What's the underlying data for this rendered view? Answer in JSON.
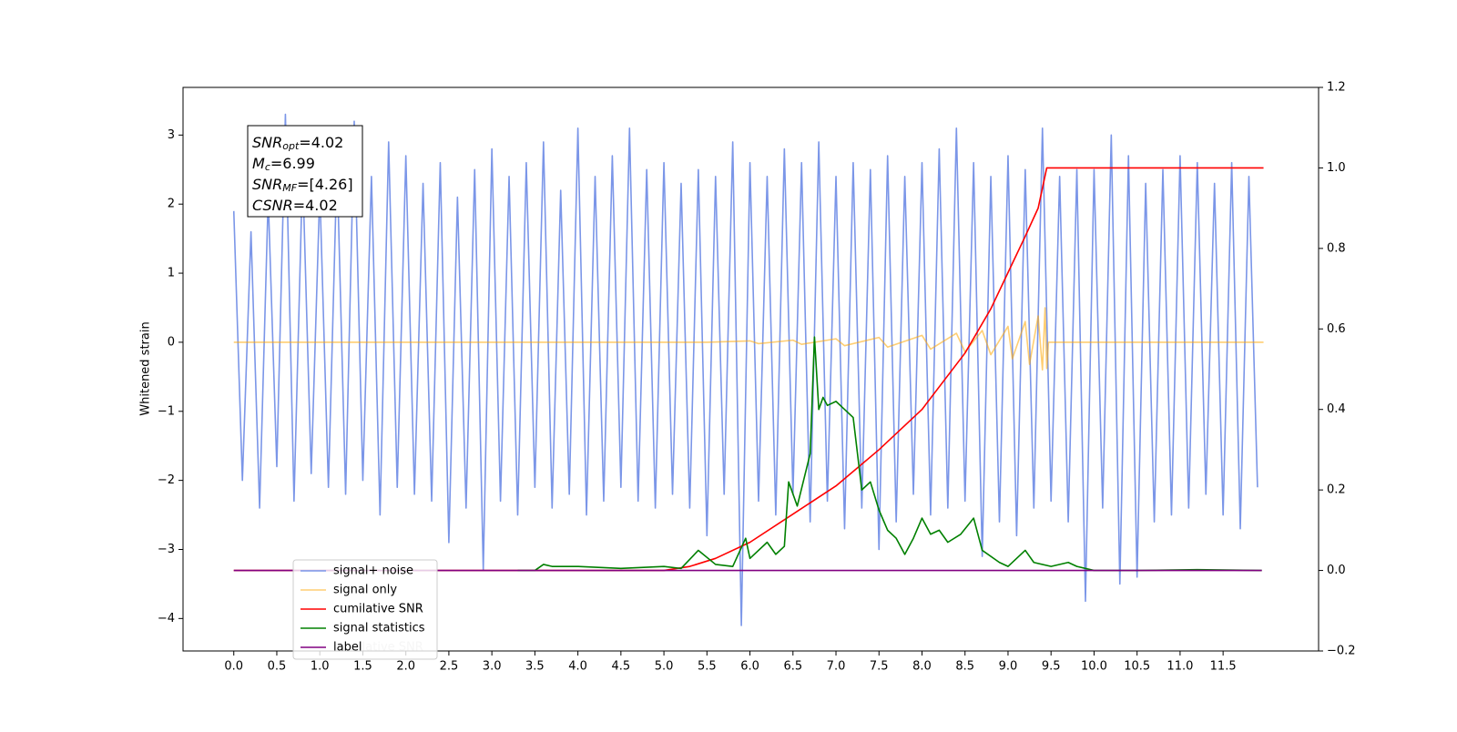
{
  "chart_data": {
    "type": "line",
    "ylabel": "Whitened strain",
    "xlim": [
      -0.59,
      12.61
    ],
    "ylim": [
      -4.47,
      3.69
    ],
    "y2lim": [
      -0.2,
      1.2
    ],
    "xticks": [
      {
        "value": 0,
        "label": "0.0"
      },
      0.5,
      {
        "value": 1,
        "label": "1.0"
      },
      1.5,
      {
        "value": 2,
        "label": "2.0"
      },
      2.5,
      {
        "value": 3,
        "label": "3.0"
      },
      3.5,
      {
        "value": 4,
        "label": "4.0"
      },
      4.5,
      {
        "value": 5,
        "label": "5.0"
      },
      5.5,
      {
        "value": 6,
        "label": "6.0"
      },
      6.5,
      {
        "value": 7,
        "label": "7.0"
      },
      7.5,
      {
        "value": 8,
        "label": "8.0"
      },
      8.5,
      {
        "value": 9,
        "label": "9.0"
      },
      9.5,
      {
        "value": 10,
        "label": "10.0"
      },
      10.5,
      {
        "value": 11,
        "label": "11.0"
      },
      11.5
    ],
    "yticks": [
      {
        "value": -4,
        "label": "−4"
      },
      {
        "value": -3,
        "label": "−3"
      },
      {
        "value": -2,
        "label": "−2"
      },
      {
        "value": -1,
        "label": "−1"
      },
      0,
      1,
      2,
      3
    ],
    "y2ticks": [
      {
        "value": -0.2,
        "label": "−0.2"
      },
      {
        "value": 0,
        "label": "0.0"
      },
      0.2,
      0.4,
      0.6,
      0.8,
      {
        "value": 1,
        "label": "1.0"
      },
      1.2
    ],
    "grid": false,
    "legend_loc": "lower left",
    "annotation": [
      {
        "name": "SNR",
        "sub": "opt",
        "text": "=4.02"
      },
      {
        "name": "M",
        "sub": "c",
        "text": "=6.99"
      },
      {
        "name": "SNR",
        "sub": "MF",
        "text": "=[4.26]"
      },
      {
        "name": "CSNR",
        "text": "=4.02"
      }
    ],
    "series": [
      {
        "name": "signal+ noise",
        "color": "#7b96e8",
        "x": [
          0,
          0.1,
          0.2,
          0.3,
          0.4,
          0.5,
          0.6,
          0.7,
          0.8,
          0.9,
          1,
          1.1,
          1.2,
          1.3,
          1.4,
          1.5,
          1.6,
          1.7,
          1.8,
          1.9,
          2,
          2.1,
          2.2,
          2.3,
          2.4,
          2.5,
          2.6,
          2.7,
          2.8,
          2.9,
          3,
          3.1,
          3.2,
          3.3,
          3.4,
          3.5,
          3.6,
          3.7,
          3.8,
          3.9,
          4,
          4.1,
          4.2,
          4.3,
          4.4,
          4.5,
          4.6,
          4.7,
          4.8,
          4.9,
          5,
          5.1,
          5.2,
          5.3,
          5.4,
          5.5,
          5.6,
          5.7,
          5.8,
          5.9,
          6,
          6.1,
          6.2,
          6.3,
          6.4,
          6.5,
          6.6,
          6.7,
          6.8,
          6.9,
          7,
          7.1,
          7.2,
          7.3,
          7.4,
          7.5,
          7.6,
          7.7,
          7.8,
          7.9,
          8,
          8.1,
          8.2,
          8.3,
          8.4,
          8.5,
          8.6,
          8.7,
          8.8,
          8.9,
          9,
          9.1,
          9.2,
          9.3,
          9.4,
          9.5,
          9.6,
          9.7,
          9.8,
          9.9,
          10,
          10.1,
          10.2,
          10.3,
          10.4,
          10.5,
          10.6,
          10.7,
          10.8,
          10.9,
          11,
          11.1,
          11.2,
          11.3,
          11.4,
          11.5,
          11.6,
          11.7,
          11.8,
          11.9
        ],
        "values": [
          1.9,
          -2.0,
          1.6,
          -2.4,
          2.1,
          -1.8,
          3.3,
          -2.3,
          2.5,
          -1.9,
          2.2,
          -2.1,
          2.6,
          -2.2,
          3.2,
          -2.0,
          2.4,
          -2.5,
          2.9,
          -2.1,
          2.7,
          -2.2,
          2.3,
          -2.3,
          2.6,
          -2.9,
          2.1,
          -2.4,
          2.5,
          -3.3,
          2.8,
          -2.3,
          2.4,
          -2.5,
          2.6,
          -2.1,
          2.9,
          -2.4,
          2.2,
          -2.2,
          3.1,
          -2.5,
          2.4,
          -2.3,
          2.7,
          -2.1,
          3.1,
          -2.3,
          2.5,
          -2.4,
          2.6,
          -2.2,
          2.3,
          -2.4,
          2.5,
          -2.8,
          2.4,
          -2.2,
          2.9,
          -4.1,
          2.6,
          -2.3,
          2.4,
          -2.5,
          2.8,
          -2.2,
          2.6,
          -2.6,
          2.9,
          -2.3,
          2.4,
          -2.7,
          2.6,
          -2.4,
          2.5,
          -3.0,
          2.7,
          -2.6,
          2.4,
          -2.2,
          2.6,
          -2.5,
          2.8,
          -2.4,
          3.1,
          -2.3,
          2.6,
          -3.1,
          2.4,
          -2.6,
          2.7,
          -2.8,
          2.5,
          -2.4,
          3.1,
          -2.3,
          2.4,
          -2.6,
          2.5,
          -3.75,
          2.5,
          -2.4,
          3.0,
          -3.5,
          2.7,
          -3.4,
          2.3,
          -2.6,
          2.5,
          -2.5,
          2.7,
          -2.4,
          2.6,
          -2.2,
          2.3,
          -2.5,
          2.6,
          -2.7,
          2.4,
          -2.1
        ]
      },
      {
        "name": "signal only",
        "color": "#ffa500",
        "x": [
          0,
          5.5,
          6.0,
          6.1,
          6.5,
          6.6,
          7.0,
          7.1,
          7.5,
          7.6,
          8.0,
          8.1,
          8.4,
          8.5,
          8.7,
          8.8,
          9.0,
          9.05,
          9.2,
          9.25,
          9.35,
          9.4,
          9.43,
          9.45,
          9.47,
          11.97
        ],
        "values": [
          0,
          0,
          0.02,
          -0.02,
          0.03,
          -0.03,
          0.05,
          -0.05,
          0.07,
          -0.07,
          0.1,
          -0.1,
          0.13,
          -0.14,
          0.17,
          -0.18,
          0.23,
          -0.24,
          0.3,
          -0.32,
          0.38,
          -0.4,
          0.5,
          -0.38,
          0,
          0
        ]
      },
      {
        "name": "cumilative SNR",
        "color": "#ff0000",
        "axis": "y2",
        "x": [
          0,
          5.0,
          5.3,
          5.6,
          6.0,
          6.5,
          7.0,
          7.5,
          8.0,
          8.5,
          8.8,
          9.0,
          9.2,
          9.35,
          9.45,
          11.97
        ],
        "values": [
          0,
          0,
          0.01,
          0.03,
          0.07,
          0.14,
          0.21,
          0.3,
          0.4,
          0.54,
          0.65,
          0.74,
          0.83,
          0.9,
          1.0,
          1.0
        ]
      },
      {
        "name": "signal statistics",
        "color": "#008000",
        "axis": "y2",
        "x": [
          3.3,
          3.5,
          3.6,
          3.7,
          4.0,
          4.5,
          5.0,
          5.2,
          5.4,
          5.6,
          5.8,
          5.95,
          6.0,
          6.2,
          6.3,
          6.4,
          6.45,
          6.55,
          6.7,
          6.75,
          6.8,
          6.85,
          6.9,
          7.0,
          7.1,
          7.2,
          7.3,
          7.4,
          7.5,
          7.6,
          7.7,
          7.8,
          7.9,
          8.0,
          8.1,
          8.2,
          8.3,
          8.45,
          8.6,
          8.7,
          8.9,
          9.0,
          9.1,
          9.2,
          9.3,
          9.5,
          9.7,
          9.8,
          10.0,
          10.5,
          11.2,
          11.95
        ],
        "values": [
          0,
          0,
          0.015,
          0.01,
          0.01,
          0.005,
          0.01,
          0.005,
          0.05,
          0.015,
          0.01,
          0.08,
          0.03,
          0.07,
          0.04,
          0.06,
          0.22,
          0.16,
          0.29,
          0.58,
          0.4,
          0.43,
          0.41,
          0.42,
          0.4,
          0.38,
          0.2,
          0.22,
          0.15,
          0.1,
          0.08,
          0.04,
          0.08,
          0.13,
          0.09,
          0.1,
          0.07,
          0.09,
          0.13,
          0.05,
          0.02,
          0.01,
          0.03,
          0.05,
          0.02,
          0.01,
          0.02,
          0.01,
          0,
          0,
          0.002,
          0
        ]
      },
      {
        "name": "label",
        "color": "#800080",
        "axis": "y2",
        "x": [
          0,
          11.95
        ],
        "values": [
          0,
          0
        ]
      }
    ]
  }
}
